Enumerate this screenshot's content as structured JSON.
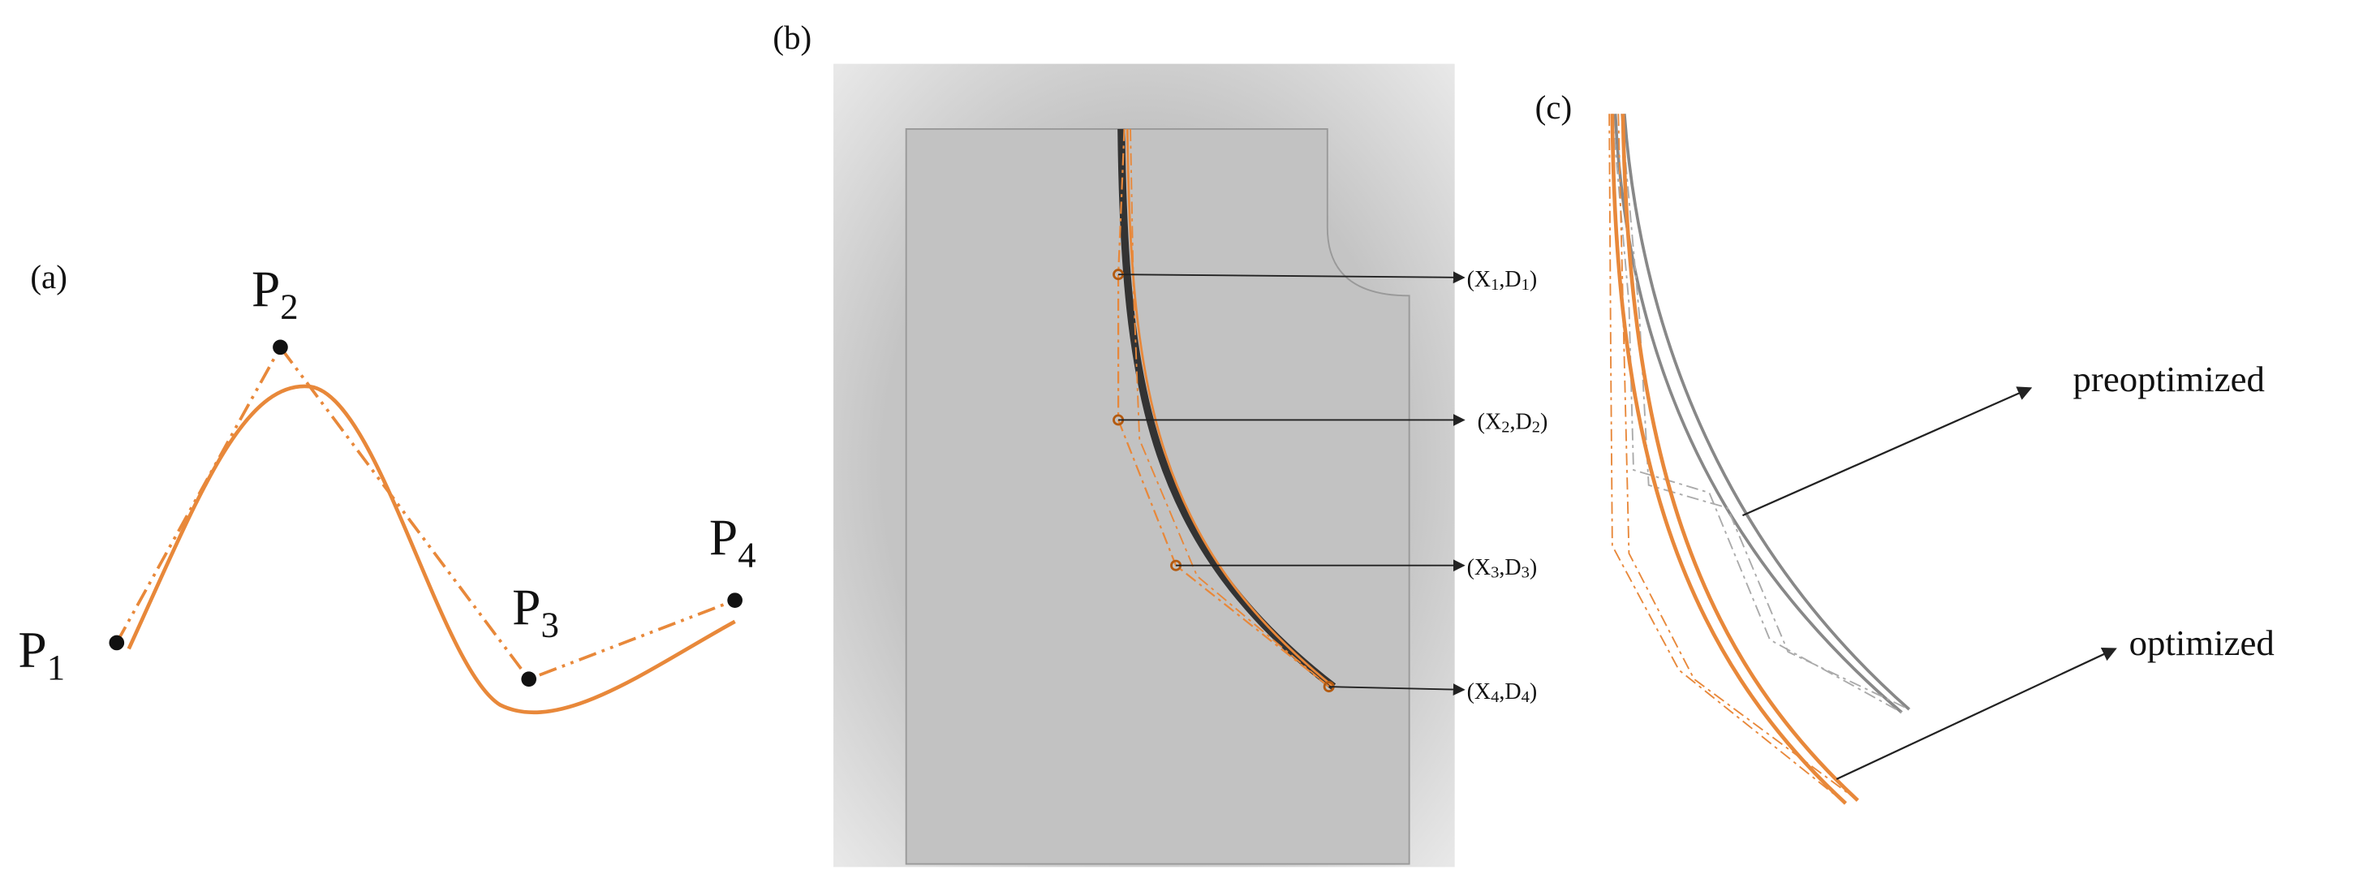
{
  "panels": [
    {
      "label": "(a)",
      "points": [
        {
          "name": "P",
          "sub": "1"
        },
        {
          "name": "P",
          "sub": "2"
        },
        {
          "name": "P",
          "sub": "3"
        },
        {
          "name": "P",
          "sub": "4"
        }
      ]
    },
    {
      "label": "(b)",
      "annotations": [
        [
          "(X",
          "1",
          ",D",
          "1",
          ")"
        ],
        [
          "(X",
          "2",
          ",D",
          "2",
          ")"
        ],
        [
          "(X",
          "3",
          ",D",
          "3",
          ")"
        ],
        [
          "(X",
          "4",
          ",D",
          "4",
          ")"
        ]
      ]
    },
    {
      "label": "(c)",
      "annotations": [
        "preoptimized",
        "optimized"
      ]
    }
  ]
}
